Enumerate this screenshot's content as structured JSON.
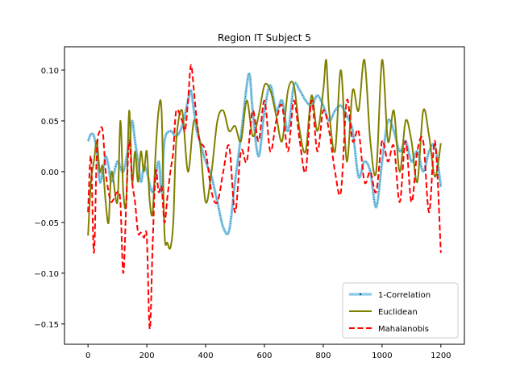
{
  "chart_data": {
    "type": "line",
    "title": "Region IT Subject 5",
    "xlabel": "",
    "ylabel": "",
    "xlim": [
      -80,
      1280
    ],
    "ylim": [
      -0.17,
      0.123
    ],
    "xticks": [
      0,
      200,
      400,
      600,
      800,
      1000,
      1200
    ],
    "xtick_labels": [
      "0",
      "200",
      "400",
      "600",
      "800",
      "1000",
      "1200"
    ],
    "yticks": [
      -0.15,
      -0.1,
      -0.05,
      0.0,
      0.05,
      0.1
    ],
    "ytick_labels": [
      "−0.15",
      "−0.10",
      "−0.05",
      "0.00",
      "0.05",
      "0.10"
    ],
    "grid": false,
    "legend_position": "lower-right",
    "series": [
      {
        "name": "1-Correlation",
        "color": "#87CEEB",
        "style": "solid-with-dotted-center",
        "x": [
          0,
          10,
          20,
          30,
          40,
          50,
          60,
          70,
          80,
          100,
          120,
          140,
          150,
          160,
          170,
          180,
          190,
          200,
          220,
          240,
          250,
          260,
          280,
          300,
          320,
          340,
          350,
          360,
          370,
          380,
          400,
          420,
          440,
          460,
          480,
          500,
          520,
          540,
          550,
          560,
          580,
          600,
          620,
          640,
          660,
          680,
          700,
          720,
          740,
          760,
          780,
          800,
          820,
          840,
          860,
          880,
          900,
          920,
          940,
          960,
          980,
          1000,
          1020,
          1040,
          1060,
          1080,
          1100,
          1120,
          1140,
          1160,
          1180,
          1200
        ],
        "values": [
          0.03,
          0.037,
          0.035,
          0.02,
          -0.01,
          0.0,
          0.015,
          0.005,
          -0.01,
          0.01,
          0.0,
          0.03,
          0.05,
          0.03,
          0.01,
          -0.01,
          0.005,
          0.0,
          -0.02,
          0.01,
          -0.02,
          0.03,
          0.04,
          0.035,
          0.045,
          0.07,
          0.08,
          0.06,
          0.04,
          0.03,
          0.01,
          -0.005,
          -0.03,
          -0.055,
          -0.058,
          -0.01,
          0.035,
          0.085,
          0.095,
          0.06,
          0.015,
          0.06,
          0.085,
          0.06,
          0.07,
          0.04,
          0.085,
          0.08,
          0.07,
          0.065,
          0.075,
          0.065,
          0.05,
          0.06,
          0.065,
          0.055,
          0.04,
          -0.005,
          0.01,
          0.0,
          -0.035,
          0.01,
          0.05,
          0.04,
          0.02,
          0.03,
          0.01,
          0.02,
          0.0,
          0.02,
          0.025,
          -0.015
        ]
      },
      {
        "name": "Euclidean",
        "color": "#808000",
        "style": "solid",
        "x": [
          0,
          10,
          20,
          30,
          40,
          50,
          60,
          70,
          80,
          100,
          110,
          120,
          130,
          140,
          150,
          160,
          170,
          180,
          190,
          200,
          210,
          220,
          230,
          240,
          250,
          260,
          270,
          280,
          290,
          300,
          320,
          340,
          360,
          380,
          400,
          420,
          440,
          460,
          480,
          500,
          520,
          540,
          560,
          580,
          600,
          620,
          640,
          660,
          680,
          700,
          720,
          740,
          760,
          780,
          800,
          810,
          820,
          840,
          860,
          880,
          900,
          920,
          940,
          960,
          980,
          1000,
          1020,
          1040,
          1060,
          1080,
          1100,
          1120,
          1140,
          1160,
          1180,
          1200
        ],
        "values": [
          -0.063,
          -0.01,
          0.01,
          0.03,
          0.0,
          0.005,
          -0.03,
          -0.05,
          0.0,
          -0.03,
          0.05,
          -0.02,
          -0.03,
          0.06,
          -0.01,
          0.02,
          -0.01,
          0.02,
          0.0,
          0.02,
          -0.03,
          -0.04,
          0.02,
          0.06,
          0.06,
          -0.06,
          -0.07,
          -0.075,
          -0.05,
          0.03,
          0.06,
          0.0,
          0.05,
          0.03,
          -0.03,
          0.0,
          0.05,
          0.06,
          0.04,
          0.045,
          0.03,
          0.07,
          0.035,
          0.055,
          0.085,
          0.08,
          0.055,
          0.03,
          0.08,
          0.085,
          0.04,
          0.02,
          0.075,
          0.04,
          0.08,
          0.11,
          0.06,
          0.02,
          0.1,
          0.01,
          0.08,
          0.06,
          0.11,
          0.03,
          0.0,
          0.11,
          0.03,
          0.06,
          0.0,
          0.05,
          0.03,
          -0.01,
          0.06,
          0.035,
          -0.005,
          0.028
        ]
      },
      {
        "name": "Mahalanobis",
        "color": "#FF0000",
        "style": "dashed",
        "x": [
          0,
          10,
          20,
          30,
          40,
          50,
          60,
          70,
          80,
          100,
          110,
          120,
          130,
          140,
          150,
          160,
          170,
          180,
          190,
          200,
          210,
          220,
          230,
          240,
          250,
          260,
          270,
          280,
          290,
          300,
          320,
          330,
          340,
          350,
          360,
          370,
          380,
          400,
          420,
          440,
          460,
          480,
          500,
          520,
          540,
          560,
          580,
          600,
          620,
          640,
          660,
          680,
          700,
          720,
          740,
          760,
          780,
          800,
          820,
          840,
          860,
          880,
          900,
          920,
          940,
          960,
          980,
          1000,
          1020,
          1040,
          1060,
          1080,
          1100,
          1120,
          1140,
          1160,
          1180,
          1200
        ],
        "values": [
          -0.04,
          0.015,
          -0.08,
          0.02,
          0.04,
          0.04,
          0.0,
          -0.02,
          -0.03,
          -0.02,
          -0.03,
          -0.1,
          -0.03,
          0.03,
          -0.01,
          -0.03,
          -0.06,
          -0.06,
          -0.065,
          -0.065,
          -0.155,
          -0.07,
          0.0,
          -0.02,
          -0.015,
          -0.05,
          -0.025,
          0.0,
          0.02,
          0.06,
          0.05,
          0.04,
          0.07,
          0.105,
          0.08,
          0.05,
          0.03,
          0.02,
          -0.02,
          -0.03,
          0.0,
          0.025,
          -0.04,
          0.02,
          0.01,
          0.06,
          0.03,
          0.07,
          0.02,
          0.05,
          0.065,
          0.02,
          0.07,
          0.03,
          0.0,
          0.07,
          0.02,
          0.06,
          0.04,
          0.0,
          -0.02,
          0.07,
          0.03,
          0.04,
          -0.01,
          0.0,
          -0.02,
          0.03,
          0.01,
          0.025,
          -0.03,
          0.03,
          -0.03,
          0.02,
          0.03,
          -0.04,
          0.03,
          -0.08
        ]
      }
    ]
  }
}
